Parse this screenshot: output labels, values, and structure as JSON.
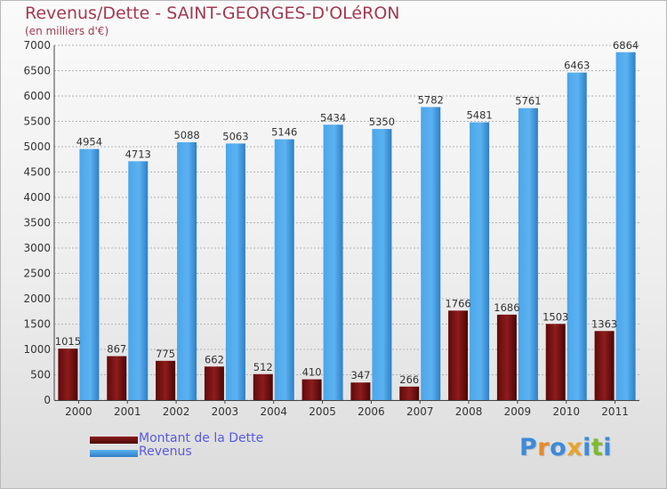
{
  "chart_data": {
    "type": "bar",
    "title": "Revenus/Dette - SAINT-GEORGES-D'OLéRON",
    "subtitle": "(en milliers d'€)",
    "categories": [
      "2000",
      "2001",
      "2002",
      "2003",
      "2004",
      "2005",
      "2006",
      "2007",
      "2008",
      "2009",
      "2010",
      "2011"
    ],
    "series": [
      {
        "name": "Montant de la Dette",
        "values": [
          1015,
          867,
          775,
          662,
          512,
          410,
          347,
          266,
          1766,
          1686,
          1503,
          1363
        ],
        "color": "#7a1212"
      },
      {
        "name": "Revenus",
        "values": [
          4954,
          4713,
          5088,
          5063,
          5146,
          5434,
          5350,
          5782,
          5481,
          5761,
          6463,
          6864
        ],
        "color": "#4aa3e6"
      }
    ],
    "ylim": [
      0,
      7000
    ],
    "yticks": [
      0,
      500,
      1000,
      1500,
      2000,
      2500,
      3000,
      3500,
      4000,
      4500,
      5000,
      5500,
      6000,
      6500,
      7000
    ],
    "grid": true,
    "legend_position": "bottom-left"
  },
  "logo": {
    "text": "Proxiti",
    "letters": [
      {
        "ch": "P",
        "color": "#3d8bd9"
      },
      {
        "ch": "r",
        "color": "#e58a2c"
      },
      {
        "ch": "o",
        "color": "#3d8bd9"
      },
      {
        "ch": "x",
        "color": "#e5a52c"
      },
      {
        "ch": "i",
        "color": "#3d8bd9"
      },
      {
        "ch": "t",
        "color": "#7dbb2e"
      },
      {
        "ch": "i",
        "color": "#3d8bd9"
      }
    ]
  }
}
